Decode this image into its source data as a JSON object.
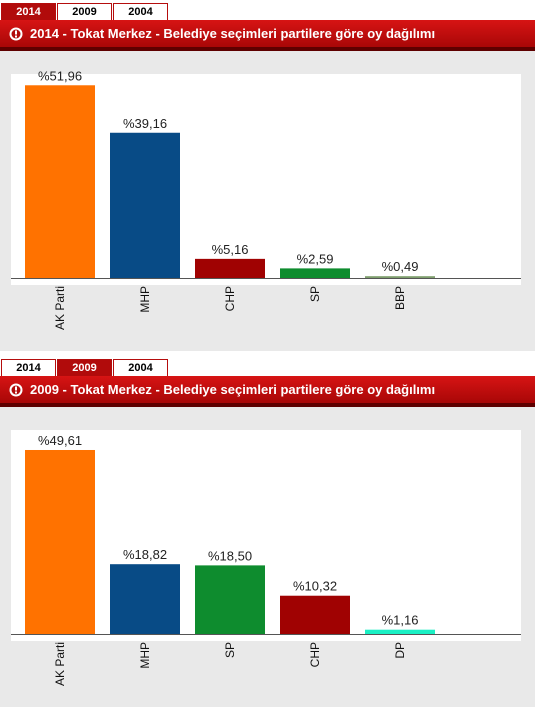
{
  "tabs": [
    "2014",
    "2009",
    "2004"
  ],
  "panels": [
    {
      "active_tab": "2014",
      "title": "2014 - Tokat Merkez - Belediye seçimleri partilere göre oy dağılımı"
    },
    {
      "active_tab": "2009",
      "title": "2009 - Tokat Merkez - Belediye seçimleri partilere göre oy dağılımı"
    }
  ],
  "chart_data": [
    {
      "type": "bar",
      "title": "2014 - Tokat Merkez - Belediye seçimleri partilere göre oy dağılımı",
      "categories": [
        "AK Parti",
        "MHP",
        "CHP",
        "SP",
        "BBP"
      ],
      "values": [
        51.96,
        39.16,
        5.16,
        2.59,
        0.49
      ],
      "value_labels": [
        "%51,96",
        "%39,16",
        "%5,16",
        "%2,59",
        "%0,49"
      ],
      "colors": [
        "#ff7200",
        "#084b86",
        "#a00202",
        "#0e8c2e",
        "#7f9f6e"
      ],
      "ylim": [
        0,
        55
      ]
    },
    {
      "type": "bar",
      "title": "2009 - Tokat Merkez - Belediye seçimleri partilere göre oy dağılımı",
      "categories": [
        "AK Parti",
        "MHP",
        "SP",
        "CHP",
        "DP"
      ],
      "values": [
        49.61,
        18.82,
        18.5,
        10.32,
        1.16
      ],
      "value_labels": [
        "%49,61",
        "%18,82",
        "%18,50",
        "%10,32",
        "%1,16"
      ],
      "colors": [
        "#ff7200",
        "#084b86",
        "#0e8c2e",
        "#a00202",
        "#1af0c4"
      ],
      "ylim": [
        0,
        55
      ]
    }
  ],
  "colors": {
    "tab_active": "#b10b0b",
    "header": "#c20f0f",
    "chart_bg": "#e9e9e9",
    "plot_bg": "#ffffff"
  }
}
